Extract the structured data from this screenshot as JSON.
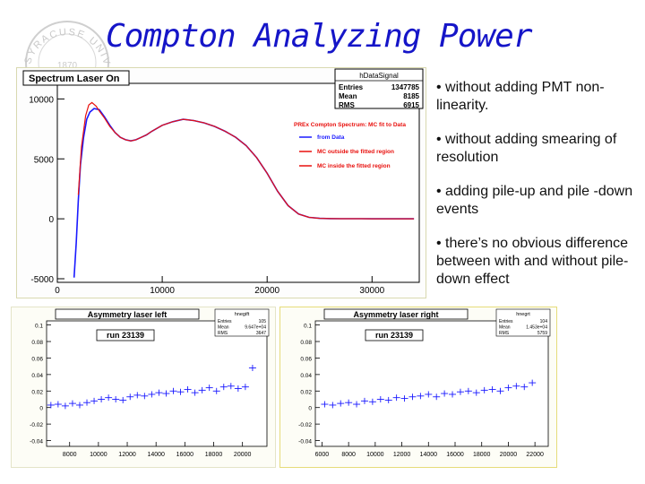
{
  "slide": {
    "title": "Compton Analyzing Power",
    "bullets": [
      "• without adding PMT non-linearity.",
      "• without adding smearing of resolution",
      "• adding pile-up and pile -down events",
      "• there’s no obvious difference between with and without pile-down effect"
    ],
    "seal_text": "SYRACUSE UNIVERSITY",
    "seal_year": "1870",
    "accent_color": "#1515c8",
    "seal_icon": "university-seal-watermark"
  },
  "chart_data": [
    {
      "type": "line",
      "title": "Spectrum Laser On",
      "stats": {
        "name": "hDataSignal",
        "rows": [
          {
            "label": "Entries",
            "value": "1347785"
          },
          {
            "label": "Mean",
            "value": "8185"
          },
          {
            "label": "RMS",
            "value": "6915"
          }
        ]
      },
      "legend_title": "PREx Compton Spectrum: MC fit to Data",
      "legend": [
        {
          "label": "from Data",
          "color": "#1a1aff"
        },
        {
          "label": "MC outside the fitted region",
          "color": "#e8100d"
        },
        {
          "label": "MC inside the fitted region",
          "color": "#e8100d"
        }
      ],
      "xlim": [
        0,
        34500
      ],
      "ylim": [
        -5300,
        11300
      ],
      "xticks": [
        0,
        10000,
        20000,
        30000
      ],
      "xtick_labels": [
        "0",
        "10000",
        "20000",
        "30000"
      ],
      "yticks": [
        -5000,
        0,
        5000,
        10000
      ],
      "ytick_labels": [
        "-5000",
        "0",
        "5000",
        "10000"
      ],
      "series": [
        {
          "name": "from Data",
          "color": "#1a1aff",
          "x": [
            1600,
            1800,
            2000,
            2200,
            2500,
            2800,
            3100,
            3500,
            4000,
            4500,
            5000,
            5500,
            6000,
            6500,
            7000,
            7500,
            8000,
            8500,
            9000,
            10000,
            11000,
            12000,
            13000,
            14000,
            15000,
            16000,
            17000,
            18000,
            19000,
            20000,
            21000,
            22000,
            23000,
            24000,
            25000,
            26000,
            27000,
            28000,
            29000,
            30000,
            31000,
            32000,
            33000,
            34000
          ],
          "y": [
            -4900,
            -2000,
            1500,
            4500,
            6800,
            8300,
            8900,
            9200,
            9100,
            8500,
            7800,
            7200,
            6800,
            6600,
            6500,
            6600,
            6800,
            7000,
            7300,
            7800,
            8100,
            8300,
            8200,
            8000,
            7700,
            7300,
            6800,
            6100,
            5100,
            3800,
            2300,
            1100,
            400,
            120,
            40,
            20,
            10,
            10,
            10,
            5,
            5,
            0,
            0,
            0
          ]
        },
        {
          "name": "MC",
          "color": "#e8100d",
          "x": [
            2000,
            2300,
            2700,
            3000,
            3300,
            3700,
            4000,
            4500,
            5000,
            5500,
            6000,
            6500,
            7000,
            7500,
            8000,
            8500,
            9000,
            10000,
            11000,
            12000,
            13000,
            14000,
            15000,
            16000,
            17000,
            18000,
            19000,
            20000,
            21000,
            22000,
            23000,
            24000,
            25000,
            26000,
            27000,
            28000,
            29000,
            30000,
            31000,
            32000,
            33000,
            34000
          ],
          "y": [
            2000,
            6000,
            8600,
            9500,
            9700,
            9400,
            9000,
            8400,
            7700,
            7200,
            6800,
            6600,
            6500,
            6600,
            6800,
            7000,
            7300,
            7800,
            8100,
            8300,
            8200,
            8000,
            7700,
            7300,
            6800,
            6100,
            5100,
            3800,
            2300,
            1100,
            400,
            120,
            40,
            20,
            10,
            10,
            10,
            5,
            5,
            0,
            0,
            0
          ]
        }
      ]
    },
    {
      "type": "scatter",
      "title": "Asymmetry laser left",
      "run_label": "run 23139",
      "stats": {
        "name": "hnegift",
        "rows": [
          {
            "label": "Entries",
            "value": "105"
          },
          {
            "label": "Mean",
            "value": "9.647e+04"
          },
          {
            "label": "RMS",
            "value": "3647"
          }
        ]
      },
      "xlim": [
        6400,
        21700
      ],
      "ylim": [
        -0.047,
        0.105
      ],
      "xticks": [
        8000,
        10000,
        12000,
        14000,
        16000,
        18000,
        20000
      ],
      "xtick_labels": [
        "8000",
        "10000",
        "12000",
        "14000",
        "16000",
        "18000",
        "20000"
      ],
      "yticks": [
        -0.04,
        -0.02,
        0,
        0.02,
        0.04,
        0.06,
        0.08,
        0.1
      ],
      "ytick_labels": [
        "-0.04",
        "-0.02",
        "0",
        "0.02",
        "0.04",
        "0.06",
        "0.08",
        "0.1"
      ],
      "series": [
        {
          "name": "",
          "color": "#1a1aff",
          "x": [
            6700,
            7200,
            7700,
            8200,
            8700,
            9200,
            9700,
            10200,
            10700,
            11200,
            11700,
            12200,
            12700,
            13200,
            13700,
            14200,
            14700,
            15200,
            15700,
            16200,
            16700,
            17200,
            17700,
            18200,
            18700,
            19200,
            19700,
            20200,
            20700
          ],
          "y": [
            0.003,
            0.004,
            0.002,
            0.005,
            0.003,
            0.006,
            0.008,
            0.01,
            0.012,
            0.01,
            0.009,
            0.013,
            0.015,
            0.014,
            0.016,
            0.018,
            0.017,
            0.02,
            0.019,
            0.022,
            0.018,
            0.021,
            0.024,
            0.02,
            0.025,
            0.026,
            0.023,
            0.025,
            0.048
          ]
        }
      ]
    },
    {
      "type": "scatter",
      "title": "Asymmetry laser right",
      "run_label": "run 23139",
      "stats": {
        "name": "hnegrt",
        "rows": [
          {
            "label": "Entries",
            "value": "104"
          },
          {
            "label": "Mean",
            "value": "1.453e+04"
          },
          {
            "label": "RMS",
            "value": "5759"
          }
        ]
      },
      "xlim": [
        5500,
        23000
      ],
      "ylim": [
        -0.047,
        0.105
      ],
      "xticks": [
        6000,
        8000,
        10000,
        12000,
        14000,
        16000,
        18000,
        20000,
        22000
      ],
      "xtick_labels": [
        "6000",
        "8000",
        "10000",
        "12000",
        "14000",
        "16000",
        "18000",
        "20000",
        "22000"
      ],
      "yticks": [
        -0.04,
        -0.02,
        0,
        0.02,
        0.04,
        0.06,
        0.08,
        0.1
      ],
      "ytick_labels": [
        "-0.04",
        "-0.02",
        "0",
        "0.02",
        "0.04",
        "0.06",
        "0.08",
        "0.1"
      ],
      "series": [
        {
          "name": "",
          "color": "#1a1aff",
          "x": [
            6200,
            6800,
            7400,
            8000,
            8600,
            9200,
            9800,
            10400,
            11000,
            11600,
            12200,
            12800,
            13400,
            14000,
            14600,
            15200,
            15800,
            16400,
            17000,
            17600,
            18200,
            18800,
            19400,
            20000,
            20600,
            21200,
            21800
          ],
          "y": [
            0.004,
            0.003,
            0.005,
            0.006,
            0.004,
            0.008,
            0.007,
            0.01,
            0.009,
            0.012,
            0.011,
            0.013,
            0.014,
            0.016,
            0.013,
            0.017,
            0.016,
            0.019,
            0.02,
            0.018,
            0.021,
            0.022,
            0.02,
            0.024,
            0.026,
            0.025,
            0.03
          ]
        }
      ]
    }
  ]
}
